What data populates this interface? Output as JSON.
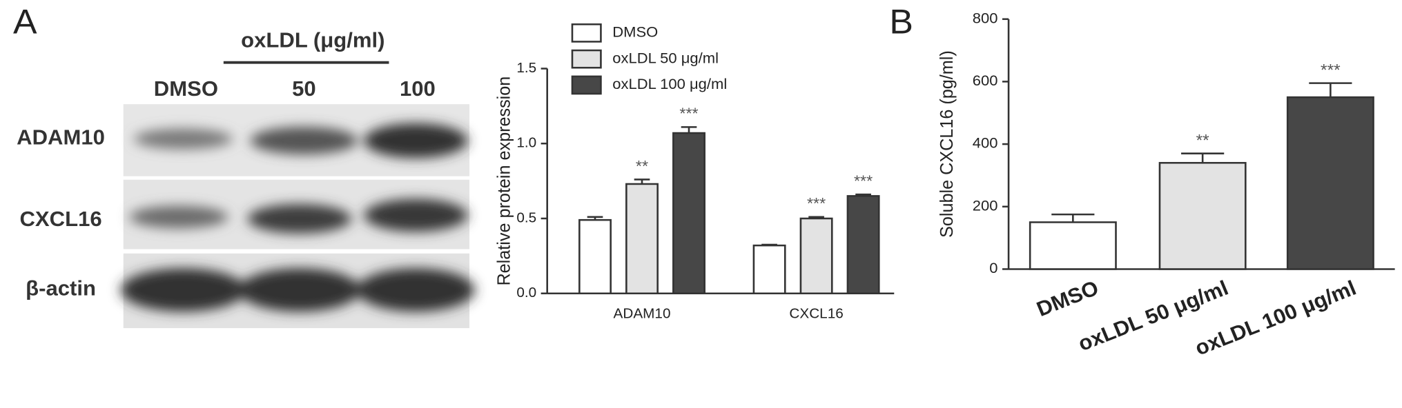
{
  "figure": {
    "panel_a": "A",
    "panel_b": "B"
  },
  "blot": {
    "treatment": "oxLDL  (μg/ml)",
    "lanes": [
      "DMSO",
      "50",
      "100"
    ],
    "proteins": [
      "ADAM10",
      "CXCL16",
      "β-actin"
    ]
  },
  "chart_data": [
    {
      "type": "bar",
      "ylabel": "Relative protein expression",
      "categories": [
        "ADAM10",
        "CXCL16"
      ],
      "series": [
        {
          "name": "DMSO",
          "color": "#ffffff",
          "values": [
            0.49,
            0.32
          ],
          "errors": [
            0.02,
            0.005
          ],
          "significance": [
            null,
            null
          ]
        },
        {
          "name": "oxLDL 50 μg/ml",
          "color": "#e3e3e3",
          "values": [
            0.73,
            0.5
          ],
          "errors": [
            0.03,
            0.01
          ],
          "significance": [
            "**",
            "***"
          ]
        },
        {
          "name": "oxLDL 100 μg/ml",
          "color": "#474747",
          "values": [
            1.07,
            0.65
          ],
          "errors": [
            0.04,
            0.01
          ],
          "significance": [
            "***",
            "***"
          ]
        }
      ],
      "ylim": [
        0,
        1.5
      ],
      "yticks": [
        {
          "value": 0,
          "label": "0.0"
        },
        0.5,
        {
          "value": 1,
          "label": "1.0"
        },
        1.5
      ]
    },
    {
      "type": "bar",
      "ylabel": "Soluble CXCL16 (pg/ml)",
      "categories": [
        "DMSO",
        "oxLDL 50 μg/ml",
        "oxLDL 100 μg/ml"
      ],
      "values": [
        150,
        340,
        550
      ],
      "errors": [
        25,
        30,
        45
      ],
      "colors": [
        "#ffffff",
        "#e3e3e3",
        "#474747"
      ],
      "significance": [
        null,
        "**",
        "***"
      ],
      "ylim": [
        0,
        800
      ],
      "yticks": [
        0,
        200,
        400,
        600,
        800
      ]
    }
  ]
}
